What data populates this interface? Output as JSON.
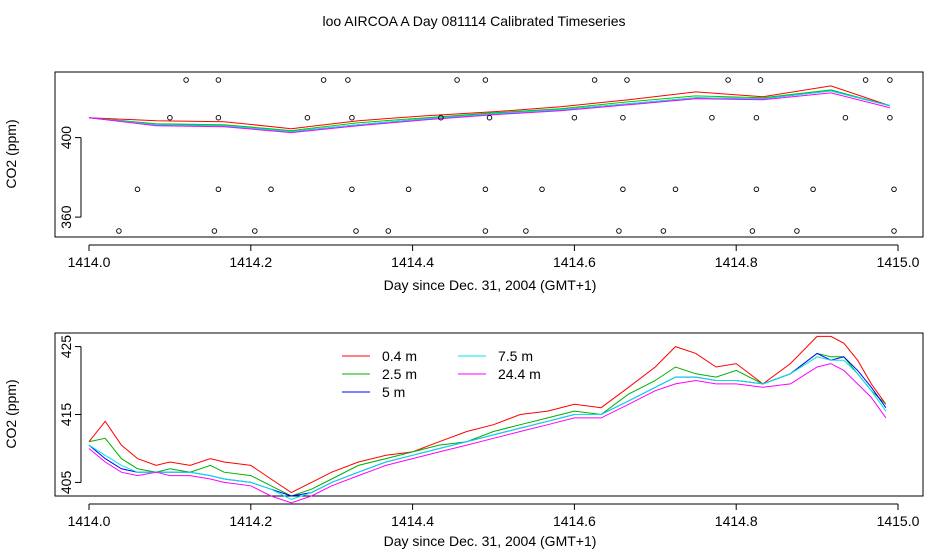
{
  "figure": {
    "title": "loo AIRCOA A  Day 081114  Calibrated Timeseries"
  },
  "chart_data": [
    {
      "type": "scatter",
      "xlabel": "Day since Dec. 31, 2004 (GMT+1)",
      "ylabel": "CO2 (ppm)",
      "xlim": [
        1414.0,
        1415.0
      ],
      "ylim": [
        350,
        433
      ],
      "xticks": [
        1414.0,
        1414.2,
        1414.4,
        1414.6,
        1414.8,
        1415.0
      ],
      "xtick_labels": [
        "1414.0",
        "1414.2",
        "1414.4",
        "1414.6",
        "1414.8",
        "1415.0"
      ],
      "yticks": [
        360,
        400
      ],
      "ytick_labels": [
        "360",
        "400"
      ],
      "grid": false,
      "series": [
        {
          "color": "#ff0000",
          "x": [
            1414.0,
            1414.083,
            1414.167,
            1414.25,
            1414.333,
            1414.417,
            1414.5,
            1414.583,
            1414.667,
            1414.75,
            1414.833,
            1414.917,
            1414.99
          ],
          "values": [
            410,
            408.5,
            408,
            404.5,
            408.5,
            411,
            413,
            415.5,
            419,
            423,
            420.5,
            426,
            416
          ]
        },
        {
          "color": "#00cc00",
          "x": [
            1414.0,
            1414.083,
            1414.167,
            1414.25,
            1414.333,
            1414.417,
            1414.5,
            1414.583,
            1414.667,
            1414.75,
            1414.833,
            1414.917,
            1414.99
          ],
          "values": [
            410,
            407,
            406.5,
            403.5,
            407.5,
            410,
            412.5,
            414.5,
            418,
            421,
            420,
            424,
            416
          ]
        },
        {
          "color": "#0000ff",
          "x": [
            1414.0,
            1414.083,
            1414.167,
            1414.25,
            1414.333,
            1414.417,
            1414.5,
            1414.583,
            1414.667,
            1414.75,
            1414.833,
            1414.917,
            1414.99
          ],
          "values": [
            410,
            406.5,
            406,
            403,
            406.5,
            409.5,
            412,
            414,
            417,
            420,
            419.5,
            423.5,
            416
          ]
        },
        {
          "color": "#00e5e5",
          "x": [
            1414.0,
            1414.083,
            1414.167,
            1414.25,
            1414.333,
            1414.417,
            1414.5,
            1414.583,
            1414.667,
            1414.75,
            1414.833,
            1414.917,
            1414.99
          ],
          "values": [
            410,
            406.5,
            406,
            403,
            406.5,
            409.5,
            412,
            414,
            417,
            420,
            419.5,
            423.5,
            416
          ]
        },
        {
          "color": "#ff00ff",
          "x": [
            1414.0,
            1414.083,
            1414.167,
            1414.25,
            1414.333,
            1414.417,
            1414.5,
            1414.583,
            1414.667,
            1414.75,
            1414.833,
            1414.917,
            1414.99
          ],
          "values": [
            410,
            406,
            405.5,
            402.5,
            406,
            409,
            411.5,
            413.5,
            416.5,
            419.5,
            419,
            422.5,
            415
          ]
        }
      ],
      "points": {
        "x": [
          1414.037,
          1414.06,
          1414.1,
          1414.12,
          1414.155,
          1414.16,
          1414.16,
          1414.16,
          1414.205,
          1414.225,
          1414.27,
          1414.29,
          1414.32,
          1414.325,
          1414.325,
          1414.33,
          1414.37,
          1414.395,
          1414.435,
          1414.455,
          1414.49,
          1414.49,
          1414.49,
          1414.495,
          1414.54,
          1414.56,
          1414.6,
          1414.625,
          1414.655,
          1414.66,
          1414.66,
          1414.665,
          1414.71,
          1414.725,
          1414.77,
          1414.79,
          1414.82,
          1414.825,
          1414.825,
          1414.83,
          1414.875,
          1414.895,
          1414.935,
          1414.96,
          1414.99,
          1414.99,
          1414.995,
          1414.995
        ],
        "y": [
          353,
          374,
          410,
          429,
          353,
          374,
          410,
          429,
          353,
          374,
          410,
          429,
          429,
          374,
          410,
          353,
          353,
          374,
          410,
          429,
          353,
          374,
          429,
          410,
          353,
          374,
          410,
          429,
          353,
          374,
          410,
          429,
          353,
          374,
          410,
          429,
          353,
          374,
          410,
          429,
          353,
          374,
          410,
          429,
          429,
          410,
          374,
          353
        ]
      }
    },
    {
      "type": "line",
      "xlabel": "Day since Dec. 31, 2004 (GMT+1)",
      "ylabel": "CO2 (ppm)",
      "xlim": [
        1414.0,
        1415.0
      ],
      "ylim": [
        403,
        427
      ],
      "xticks": [
        1414.0,
        1414.2,
        1414.4,
        1414.6,
        1414.8,
        1415.0
      ],
      "xtick_labels": [
        "1414.0",
        "1414.2",
        "1414.4",
        "1414.6",
        "1414.8",
        "1415.0"
      ],
      "yticks": [
        405,
        415,
        425
      ],
      "ytick_labels": [
        "405",
        "415",
        "425"
      ],
      "grid": false,
      "legend": "top-center",
      "series": [
        {
          "name": "0.4 m",
          "color": "#ff0000",
          "x": [
            1414.0,
            1414.02,
            1414.04,
            1414.06,
            1414.083,
            1414.1,
            1414.125,
            1414.15,
            1414.167,
            1414.2,
            1414.225,
            1414.25,
            1414.275,
            1414.3,
            1414.333,
            1414.367,
            1414.4,
            1414.433,
            1414.467,
            1414.5,
            1414.533,
            1414.567,
            1414.6,
            1414.633,
            1414.667,
            1414.7,
            1414.725,
            1414.75,
            1414.775,
            1414.8,
            1414.833,
            1414.867,
            1414.9,
            1414.917,
            1414.933,
            1414.95,
            1414.967,
            1414.985
          ],
          "values": [
            411,
            414,
            410.5,
            408.5,
            407.5,
            408,
            407.5,
            408.5,
            408,
            407.5,
            405.5,
            403.5,
            405,
            406.5,
            408,
            409,
            409.5,
            411,
            412.5,
            413.5,
            415,
            415.5,
            416.5,
            416,
            419,
            422,
            425,
            424,
            422,
            422.5,
            419.5,
            422.5,
            426.5,
            426.5,
            425.5,
            423,
            419.5,
            416.5
          ]
        },
        {
          "name": "2.5 m",
          "color": "#00b000",
          "x": [
            1414.0,
            1414.02,
            1414.04,
            1414.06,
            1414.083,
            1414.1,
            1414.125,
            1414.15,
            1414.167,
            1414.2,
            1414.225,
            1414.25,
            1414.275,
            1414.3,
            1414.333,
            1414.367,
            1414.4,
            1414.433,
            1414.467,
            1414.5,
            1414.533,
            1414.567,
            1414.6,
            1414.633,
            1414.667,
            1414.7,
            1414.725,
            1414.75,
            1414.775,
            1414.8,
            1414.833,
            1414.867,
            1414.9,
            1414.917,
            1414.933,
            1414.95,
            1414.967,
            1414.985
          ],
          "values": [
            411,
            411.5,
            408.5,
            407,
            406.5,
            407,
            406.5,
            407.5,
            406.5,
            406,
            404.5,
            403,
            404,
            405.5,
            407.5,
            408.5,
            409.5,
            410.5,
            411,
            412.5,
            413.5,
            414.5,
            415.5,
            415,
            418,
            420,
            422,
            421,
            420.5,
            421.5,
            419.5,
            421,
            424,
            423.5,
            423.5,
            421,
            418.5,
            416.5
          ]
        },
        {
          "name": "5 m",
          "color": "#0000ff",
          "x": [
            1414.0,
            1414.02,
            1414.04,
            1414.06,
            1414.083,
            1414.1,
            1414.125,
            1414.15,
            1414.167,
            1414.2,
            1414.225,
            1414.25,
            1414.275,
            1414.3,
            1414.333,
            1414.367,
            1414.4,
            1414.433,
            1414.467,
            1414.5,
            1414.533,
            1414.567,
            1414.6,
            1414.633,
            1414.667,
            1414.7,
            1414.725,
            1414.75,
            1414.775,
            1414.8,
            1414.833,
            1414.867,
            1414.9,
            1414.917,
            1414.933,
            1414.95,
            1414.967,
            1414.985
          ],
          "values": [
            410.5,
            408.5,
            407,
            406.5,
            406.5,
            406.5,
            406.5,
            406,
            405.5,
            405,
            404,
            403,
            403.5,
            405,
            406.5,
            408,
            409,
            410,
            411,
            412,
            413,
            414,
            415,
            415,
            417,
            419,
            420.5,
            420.5,
            420,
            420,
            419.5,
            421,
            424,
            423,
            423.5,
            421.5,
            419,
            416
          ]
        },
        {
          "name": "7.5 m",
          "color": "#00e5e5",
          "x": [
            1414.0,
            1414.02,
            1414.04,
            1414.06,
            1414.083,
            1414.1,
            1414.125,
            1414.15,
            1414.167,
            1414.2,
            1414.225,
            1414.25,
            1414.275,
            1414.3,
            1414.333,
            1414.367,
            1414.4,
            1414.433,
            1414.467,
            1414.5,
            1414.533,
            1414.567,
            1414.6,
            1414.633,
            1414.667,
            1414.7,
            1414.725,
            1414.75,
            1414.775,
            1414.8,
            1414.833,
            1414.867,
            1414.9,
            1414.917,
            1414.933,
            1414.95,
            1414.967,
            1414.985
          ],
          "values": [
            410.5,
            409,
            407.5,
            406.5,
            406.5,
            406.5,
            406.5,
            406,
            405.5,
            405,
            404,
            402.5,
            403.5,
            405,
            406.5,
            408,
            409,
            410,
            411,
            412,
            413,
            414,
            415,
            415,
            417,
            419,
            420.5,
            420.5,
            420,
            420,
            419.5,
            421,
            423.5,
            423,
            423,
            421,
            418.5,
            415.5
          ]
        },
        {
          "name": "24.4 m",
          "color": "#ff00ff",
          "x": [
            1414.0,
            1414.02,
            1414.04,
            1414.06,
            1414.083,
            1414.1,
            1414.125,
            1414.15,
            1414.167,
            1414.2,
            1414.225,
            1414.25,
            1414.275,
            1414.3,
            1414.333,
            1414.367,
            1414.4,
            1414.433,
            1414.467,
            1414.5,
            1414.533,
            1414.567,
            1414.6,
            1414.633,
            1414.667,
            1414.7,
            1414.725,
            1414.75,
            1414.775,
            1414.8,
            1414.833,
            1414.867,
            1414.9,
            1414.917,
            1414.933,
            1414.95,
            1414.967,
            1414.985
          ],
          "values": [
            410,
            408,
            406.5,
            406,
            406.5,
            406,
            406,
            405.5,
            405,
            404.5,
            403,
            402,
            403,
            404.5,
            406,
            407.5,
            408.5,
            409.5,
            410.5,
            411.5,
            412.5,
            413.5,
            414.5,
            414.5,
            416.5,
            418.5,
            419.5,
            420,
            419.5,
            419.5,
            419,
            419.5,
            422,
            422.5,
            421.5,
            419.5,
            417.5,
            414.5
          ]
        }
      ]
    }
  ]
}
